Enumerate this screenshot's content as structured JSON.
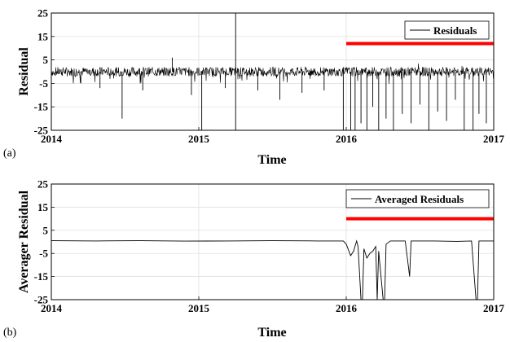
{
  "chart_data": [
    {
      "type": "line",
      "panel_label": "(a)",
      "xlabel": "Time",
      "ylabel": "Residual",
      "xlim": [
        2014,
        2017
      ],
      "ylim": [
        -25,
        25
      ],
      "xticks": [
        "2014",
        "2015",
        "2016",
        "2017"
      ],
      "yticks": [
        "25",
        "15",
        "5",
        "-5",
        "-15",
        "-25"
      ],
      "grid": true,
      "legend": "top-right",
      "series": [
        {
          "name": "Residuals",
          "color": "#000000",
          "noise_band": [
            -2,
            2
          ],
          "spikes": [
            {
              "x": 2014.2,
              "y": -5
            },
            {
              "x": 2014.33,
              "y": -7
            },
            {
              "x": 2014.48,
              "y": -20
            },
            {
              "x": 2014.62,
              "y": -8
            },
            {
              "x": 2014.82,
              "y": 6
            },
            {
              "x": 2014.95,
              "y": -10
            },
            {
              "x": 2015.02,
              "y": -25
            },
            {
              "x": 2015.18,
              "y": -7
            },
            {
              "x": 2015.25,
              "y": 25
            },
            {
              "x": 2015.25,
              "y": -25
            },
            {
              "x": 2015.4,
              "y": -8
            },
            {
              "x": 2015.55,
              "y": -12
            },
            {
              "x": 2015.7,
              "y": -9
            },
            {
              "x": 2015.85,
              "y": -8
            },
            {
              "x": 2015.98,
              "y": -25
            },
            {
              "x": 2016.03,
              "y": -25
            },
            {
              "x": 2016.06,
              "y": -25
            },
            {
              "x": 2016.1,
              "y": -22
            },
            {
              "x": 2016.14,
              "y": -25
            },
            {
              "x": 2016.18,
              "y": -15
            },
            {
              "x": 2016.22,
              "y": -25
            },
            {
              "x": 2016.27,
              "y": -20
            },
            {
              "x": 2016.32,
              "y": -25
            },
            {
              "x": 2016.38,
              "y": -18
            },
            {
              "x": 2016.44,
              "y": -22
            },
            {
              "x": 2016.5,
              "y": -14
            },
            {
              "x": 2016.56,
              "y": -25
            },
            {
              "x": 2016.62,
              "y": -17
            },
            {
              "x": 2016.68,
              "y": -21
            },
            {
              "x": 2016.74,
              "y": -12
            },
            {
              "x": 2016.8,
              "y": -25
            },
            {
              "x": 2016.86,
              "y": -25
            },
            {
              "x": 2016.9,
              "y": -18
            },
            {
              "x": 2016.95,
              "y": -22
            }
          ]
        }
      ],
      "annotation_line": {
        "color": "#ff0000",
        "x": [
          2016,
          2017
        ],
        "y": 12
      }
    },
    {
      "type": "line",
      "panel_label": "(b)",
      "xlabel": "Time",
      "ylabel": "Averager Residual",
      "xlim": [
        2014,
        2017
      ],
      "ylim": [
        -25,
        25
      ],
      "xticks": [
        "2014",
        "2015",
        "2016",
        "2017"
      ],
      "yticks": [
        "25",
        "15",
        "5",
        "-5",
        "-15",
        "-25"
      ],
      "grid": true,
      "legend": "top-right",
      "series": [
        {
          "name": "Averaged Residuals",
          "color": "#000000",
          "points": [
            [
              2014.0,
              0.5
            ],
            [
              2014.3,
              0.4
            ],
            [
              2014.6,
              0.5
            ],
            [
              2014.9,
              0.3
            ],
            [
              2015.2,
              0.4
            ],
            [
              2015.5,
              0.5
            ],
            [
              2015.8,
              0.4
            ],
            [
              2015.98,
              0.4
            ],
            [
              2016.0,
              -1
            ],
            [
              2016.03,
              -6
            ],
            [
              2016.05,
              -4
            ],
            [
              2016.07,
              0.4
            ],
            [
              2016.08,
              -2
            ],
            [
              2016.1,
              -25
            ],
            [
              2016.11,
              -25
            ],
            [
              2016.12,
              -3
            ],
            [
              2016.14,
              -7
            ],
            [
              2016.16,
              -5
            ],
            [
              2016.18,
              -4
            ],
            [
              2016.2,
              -2
            ],
            [
              2016.21,
              -25
            ],
            [
              2016.22,
              -4
            ],
            [
              2016.25,
              -25
            ],
            [
              2016.26,
              -25
            ],
            [
              2016.27,
              -1
            ],
            [
              2016.3,
              0.4
            ],
            [
              2016.4,
              0.4
            ],
            [
              2016.43,
              -15
            ],
            [
              2016.44,
              0.4
            ],
            [
              2016.6,
              0.4
            ],
            [
              2016.75,
              0.2
            ],
            [
              2016.85,
              0.4
            ],
            [
              2016.88,
              -25
            ],
            [
              2016.89,
              -25
            ],
            [
              2016.9,
              0.4
            ],
            [
              2017.0,
              0.4
            ]
          ]
        }
      ],
      "annotation_line": {
        "color": "#ff0000",
        "x": [
          2016,
          2017
        ],
        "y": 10
      }
    }
  ]
}
